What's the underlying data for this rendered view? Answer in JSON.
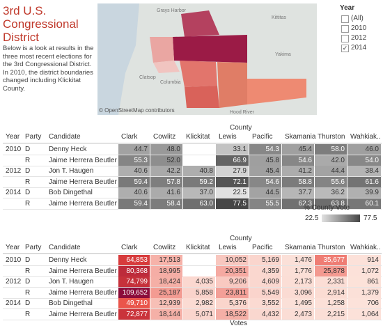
{
  "header": {
    "title": "3rd U.S. Congressional District",
    "description": "Below is a look at results in the three most recent elections for the 3rd Congressional District. In 2010, the district boundaries changed including Klickitat County."
  },
  "map": {
    "labels": [
      "Grays Harbor",
      "Kittitas",
      "Yakima",
      "Clatsop",
      "Columbia",
      "Hood River"
    ],
    "credit": "© OpenStreetMap contributors"
  },
  "filter": {
    "title": "Year",
    "options": [
      {
        "label": "(All)",
        "checked": false
      },
      {
        "label": "2010",
        "checked": false
      },
      {
        "label": "2012",
        "checked": false
      },
      {
        "label": "2014",
        "checked": true
      }
    ]
  },
  "table_pct": {
    "column_group": "County",
    "columns": [
      "Year",
      "Party",
      "Candidate",
      "Clark",
      "Cowlitz",
      "Klickitat",
      "Lewis",
      "Pacific",
      "Skamania",
      "Thurston",
      "Wahkiak.."
    ],
    "rows": [
      [
        "2010",
        "D",
        "Denny Heck",
        "44.7",
        "48.0",
        null,
        "33.1",
        "54.3",
        "45.4",
        "58.0",
        "46.0"
      ],
      [
        null,
        "R",
        "Jaime Herrera Beutler",
        "55.3",
        "52.0",
        null,
        "66.9",
        "45.8",
        "54.6",
        "42.0",
        "54.0"
      ],
      [
        "2012",
        "D",
        "Jon T. Haugen",
        "40.6",
        "42.2",
        "40.8",
        "27.9",
        "45.4",
        "41.2",
        "44.4",
        "38.4"
      ],
      [
        null,
        "R",
        "Jaime Herrera Beutler",
        "59.4",
        "57.8",
        "59.2",
        "72.1",
        "54.6",
        "58.8",
        "55.6",
        "61.6"
      ],
      [
        "2014",
        "D",
        "Bob Dingethal",
        "40.6",
        "41.6",
        "37.0",
        "22.5",
        "44.5",
        "37.7",
        "36.2",
        "39.9"
      ],
      [
        null,
        "R",
        "Jaime Herrera Beutler",
        "59.4",
        "58.4",
        "63.0",
        "77.5",
        "55.5",
        "62.3",
        "63.8",
        "60.1"
      ]
    ],
    "legend": {
      "title": "% County Vote",
      "min": "22.5",
      "max": "77.5"
    }
  },
  "table_votes": {
    "column_group": "County",
    "columns": [
      "Year",
      "Party",
      "Candidate",
      "Clark",
      "Cowlitz",
      "Klickitat",
      "Lewis",
      "Pacific",
      "Skamania",
      "Thurston",
      "Wahkiak.."
    ],
    "rows": [
      [
        "2010",
        "D",
        "Denny Heck",
        "64,853",
        "17,513",
        null,
        "10,052",
        "5,169",
        "1,476",
        "35,677",
        "914"
      ],
      [
        null,
        "R",
        "Jaime Herrera Beutler",
        "80,368",
        "18,995",
        null,
        "20,351",
        "4,359",
        "1,776",
        "25,878",
        "1,072"
      ],
      [
        "2012",
        "D",
        "Jon T. Haugen",
        "74,799",
        "18,424",
        "4,035",
        "9,206",
        "4,609",
        "2,173",
        "2,331",
        "861"
      ],
      [
        null,
        "R",
        "Jaime Herrera Beutler",
        "109,652",
        "25,187",
        "5,858",
        "23,811",
        "5,549",
        "3,096",
        "2,914",
        "1,379"
      ],
      [
        "2014",
        "D",
        "Bob Dingethal",
        "49,710",
        "12,939",
        "2,982",
        "5,376",
        "3,552",
        "1,495",
        "1,258",
        "706"
      ],
      [
        null,
        "R",
        "Jaime Herrera Beutler",
        "72,877",
        "18,144",
        "5,071",
        "18,522",
        "4,432",
        "2,473",
        "2,215",
        "1,064"
      ]
    ],
    "footer": "Votes"
  }
}
